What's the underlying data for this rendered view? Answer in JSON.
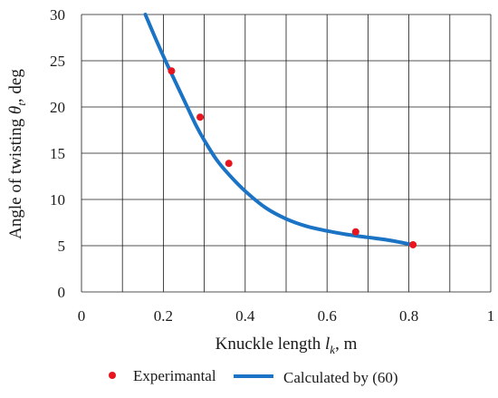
{
  "chart_data": {
    "type": "line",
    "xlabel": "Knuckle length",
    "xlabel_sym": "l",
    "xlabel_sub": "k",
    "xlabel_unit": ", m",
    "ylabel": "Angle of twisting",
    "ylabel_sym": "θ",
    "ylabel_sub": "t",
    "ylabel_unit": ", deg",
    "xlim": [
      0,
      1
    ],
    "ylim": [
      0,
      30
    ],
    "x_ticks": [
      0,
      0.1,
      0.2,
      0.3,
      0.4,
      0.5,
      0.6,
      0.7,
      0.8,
      0.9,
      1.0
    ],
    "x_tick_labels": [
      "0",
      "0.2",
      "0.4",
      "0.6",
      "0.8",
      "1"
    ],
    "x_tick_label_values": [
      0,
      0.2,
      0.4,
      0.6,
      0.8,
      1.0
    ],
    "y_ticks": [
      0,
      5,
      10,
      15,
      20,
      25,
      30
    ],
    "y_tick_labels": [
      "0",
      "5",
      "10",
      "15",
      "20",
      "25",
      "30"
    ],
    "grid": true,
    "legend_position": "bottom",
    "series": [
      {
        "name": "Experimantal",
        "kind": "scatter",
        "color": "#e8141e",
        "x": [
          0.22,
          0.29,
          0.36,
          0.67,
          0.81
        ],
        "y": [
          23.9,
          18.9,
          13.9,
          6.5,
          5.1
        ]
      },
      {
        "name": "Calculated by (60)",
        "kind": "line",
        "color": "#1a73c4",
        "x": [
          0.156,
          0.18,
          0.2,
          0.22,
          0.25,
          0.28,
          0.3,
          0.33,
          0.36,
          0.4,
          0.45,
          0.5,
          0.55,
          0.6,
          0.65,
          0.7,
          0.75,
          0.81
        ],
        "y": [
          30.0,
          27.5,
          25.5,
          23.6,
          20.8,
          18.0,
          16.4,
          14.3,
          12.7,
          10.9,
          9.1,
          7.9,
          7.1,
          6.6,
          6.2,
          5.9,
          5.6,
          5.1
        ]
      }
    ]
  }
}
